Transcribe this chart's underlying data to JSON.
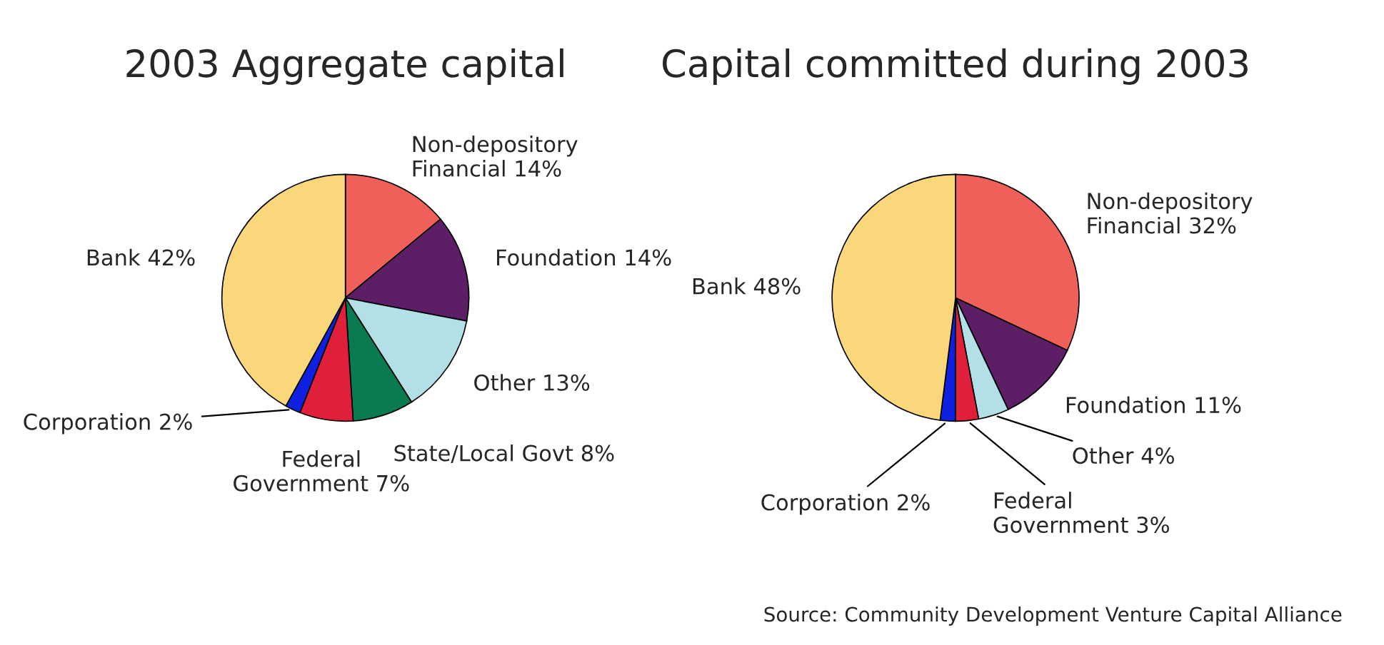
{
  "chart_data": [
    {
      "type": "pie",
      "title": "2003 Aggregate capital",
      "categories": [
        "Non-depository\nFinancial",
        "Foundation",
        "Other",
        "State/Local Govt",
        "Federal\nGovernment",
        "Corporation",
        "Bank"
      ],
      "values": [
        14,
        14,
        13,
        8,
        7,
        2,
        42
      ],
      "value_labels": [
        "14%",
        "14%",
        "13%",
        "8%",
        "7%",
        "2%",
        "42%"
      ],
      "colors": [
        "#f0605a",
        "#5c1f66",
        "#b3e0e6",
        "#0a7a50",
        "#e0203a",
        "#1020e0",
        "#f9d77a"
      ]
    },
    {
      "type": "pie",
      "title": "Capital committed during 2003",
      "categories": [
        "Non-depository\nFinancial",
        "Foundation",
        "Other",
        "Federal\nGovernment",
        "Corporation",
        "Bank"
      ],
      "values": [
        32,
        11,
        4,
        3,
        2,
        48
      ],
      "value_labels": [
        "32%",
        "11%",
        "4%",
        "3%",
        "2%",
        "48%"
      ],
      "colors": [
        "#f0605a",
        "#5c1f66",
        "#b3e0e6",
        "#e0203a",
        "#1020e0",
        "#f9d77a"
      ],
      "annotations": [
        "Source: Community Development Venture Capital Alliance"
      ]
    }
  ]
}
